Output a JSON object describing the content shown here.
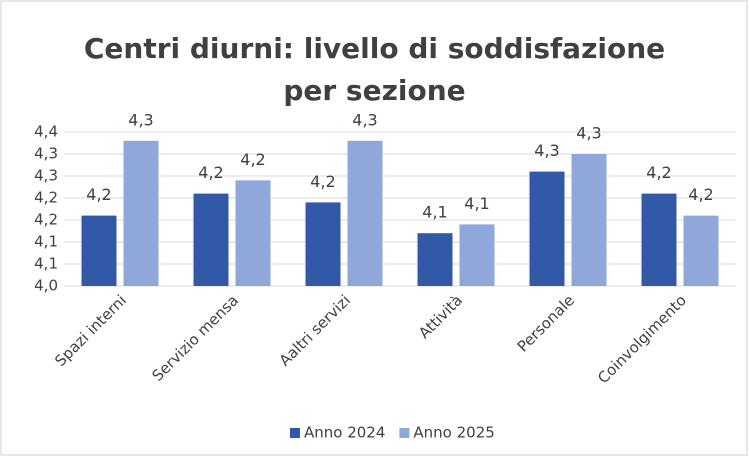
{
  "chart_data": {
    "type": "bar",
    "title": "Centri diurni: livello di soddisfazione per sezione",
    "categories": [
      "Spazi interni",
      "Servizio mensa",
      "Aaltri servizi",
      "Attività",
      "Personale",
      "Coinvolgimento"
    ],
    "series": [
      {
        "name": "Anno 2024",
        "color": "#3258a8",
        "values": [
          4.16,
          4.21,
          4.19,
          4.12,
          4.26,
          4.21
        ],
        "value_labels": [
          "4,2",
          "4,2",
          "4,2",
          "4,1",
          "4,3",
          "4,2"
        ]
      },
      {
        "name": "Anno 2025",
        "color": "#8fa7da",
        "values": [
          4.33,
          4.24,
          4.33,
          4.14,
          4.3,
          4.16
        ],
        "value_labels": [
          "4,3",
          "4,2",
          "4,3",
          "4,1",
          "4,3",
          "4,2"
        ]
      }
    ],
    "ylim": [
      4.0,
      4.35
    ],
    "yticks": [
      {
        "value": 4.0,
        "label": "4,0"
      },
      {
        "value": 4.05,
        "label": "4,1"
      },
      {
        "value": 4.1,
        "label": "4,1"
      },
      {
        "value": 4.15,
        "label": "4,2"
      },
      {
        "value": 4.2,
        "label": "4,2"
      },
      {
        "value": 4.25,
        "label": "4,3"
      },
      {
        "value": 4.3,
        "label": "4,3"
      },
      {
        "value": 4.35,
        "label": "4,4"
      }
    ],
    "grid": true,
    "legend": "bottom"
  }
}
